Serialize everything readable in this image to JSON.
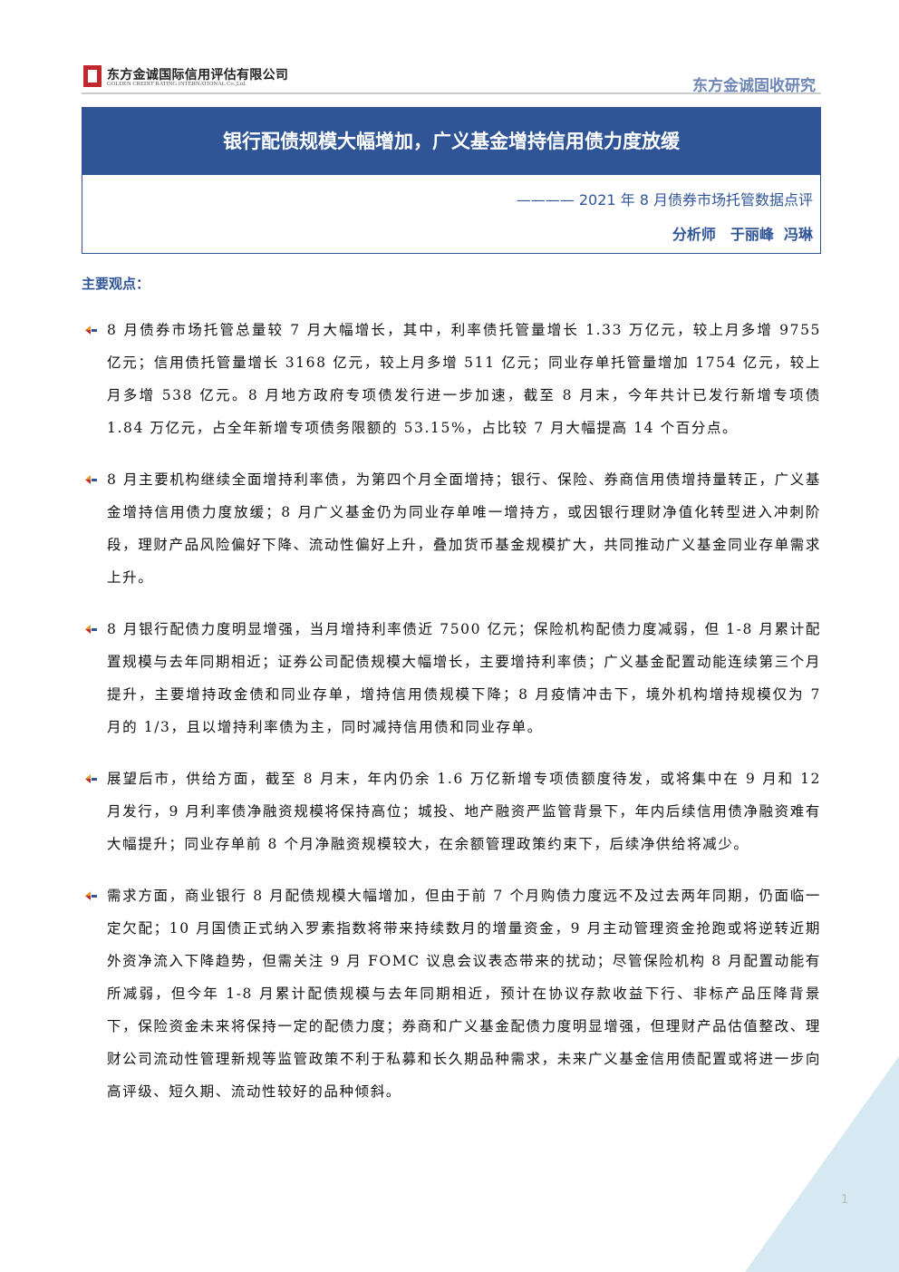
{
  "header": {
    "company_cn": "东方金诚国际信用评估有限公司",
    "company_en": "GOLDEN CREDIT RATING INTERNATIONAL Co.,Ltd.",
    "series": "东方金诚固收研究"
  },
  "title_box": {
    "title": "银行配债规模大幅增加，广义基金增持信用债力度放缓",
    "subtitle": "———— 2021 年 8 月债券市场托管数据点评",
    "analysts": "分析师　于丽峰  冯琳"
  },
  "section": {
    "heading": "主要观点：",
    "points": [
      "8 月债券市场托管总量较 7 月大幅增长，其中，利率债托管量增长 1.33 万亿元，较上月多增 9755 亿元；信用债托管量增长 3168 亿元，较上月多增 511 亿元；同业存单托管量增加 1754 亿元，较上月多增 538 亿元。8 月地方政府专项债发行进一步加速，截至 8 月末，今年共计已发行新增专项债 1.84 万亿元，占全年新增专项债务限额的 53.15%，占比较 7 月大幅提高 14 个百分点。",
      "8 月主要机构继续全面增持利率债，为第四个月全面增持；银行、保险、券商信用债增持量转正，广义基金增持信用债力度放缓；8 月广义基金仍为同业存单唯一增持方，或因银行理财净值化转型进入冲刺阶段，理财产品风险偏好下降、流动性偏好上升，叠加货币基金规模扩大，共同推动广义基金同业存单需求上升。",
      "8 月银行配债力度明显增强，当月增持利率债近 7500 亿元；保险机构配债力度减弱，但 1-8 月累计配置规模与去年同期相近；证券公司配债规模大幅增长，主要增持利率债；广义基金配置动能连续第三个月提升，主要增持政金债和同业存单，增持信用债规模下降；8 月疫情冲击下，境外机构增持规模仅为 7 月的 1/3，且以增持利率债为主，同时减持信用债和同业存单。",
      "展望后市，供给方面，截至 8 月末，年内仍余 1.6 万亿新增专项债额度待发，或将集中在 9 月和 12 月发行，9 月利率债净融资规模将保持高位；城投、地产融资严监管背景下，年内后续信用债净融资难有大幅提升；同业存单前 8 个月净融资规模较大，在余额管理政策约束下，后续净供给将减少。",
      "需求方面，商业银行 8 月配债规模大幅增加，但由于前 7 个月购债力度远不及过去两年同期，仍面临一定欠配；10 月国债正式纳入罗素指数将带来持续数月的增量资金，9 月主动管理资金抢跑或将逆转近期外资净流入下降趋势，但需关注 9 月 FOMC 议息会议表态带来的扰动；尽管保险机构 8 月配置动能有所减弱，但今年 1-8 月累计配债规模与去年同期相近，预计在协议存款收益下行、非标产品压降背景下，保险资金未来将保持一定的配债力度；券商和广义基金配债力度明显增强，但理财产品估值整改、理财公司流动性管理新规等监管政策不利于私募和长久期品种需求，未来广义基金信用债配置或将进一步向高评级、短久期、流动性较好的品种倾斜。"
    ]
  },
  "footer": {
    "page": "1"
  }
}
